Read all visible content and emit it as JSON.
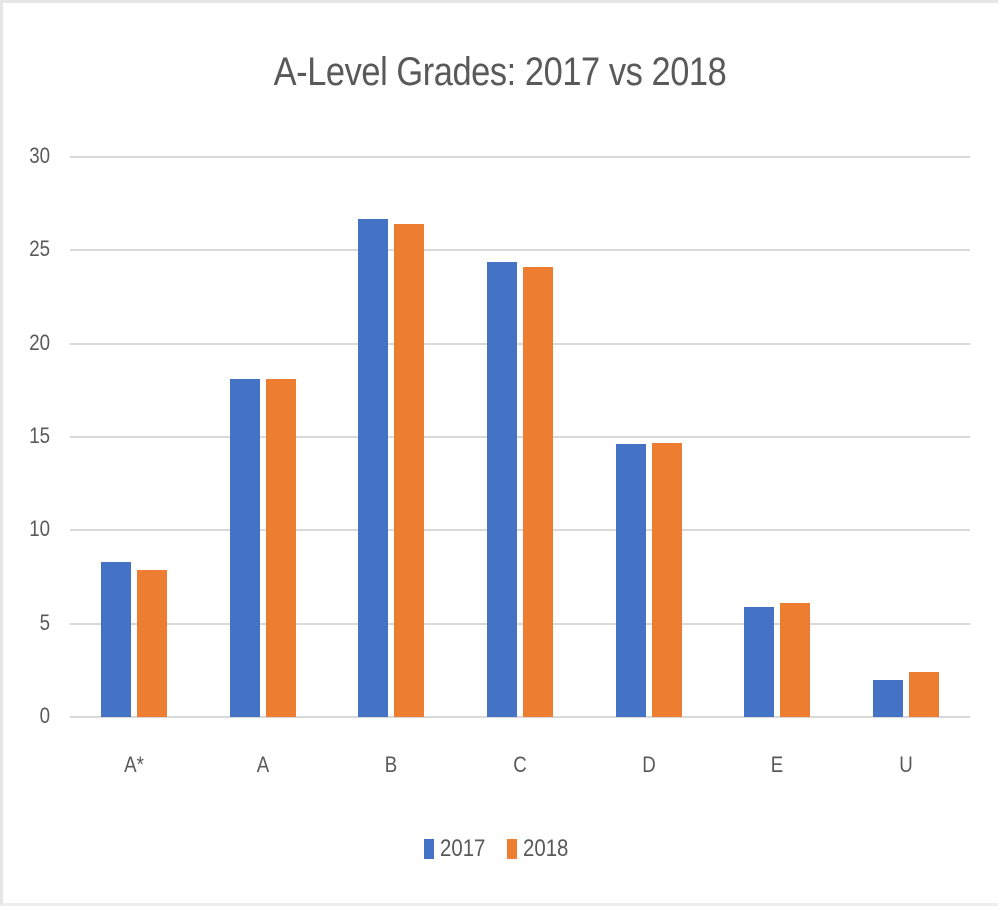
{
  "chart_data": {
    "type": "bar",
    "title": "A-Level Grades: 2017 vs 2018",
    "xlabel": "",
    "ylabel": "",
    "categories": [
      "A*",
      "A",
      "B",
      "C",
      "D",
      "E",
      "U"
    ],
    "series": [
      {
        "name": "2017",
        "color": "#4472c4",
        "values": [
          8.3,
          18.1,
          26.7,
          24.4,
          14.6,
          5.9,
          2.0
        ]
      },
      {
        "name": "2018",
        "color": "#ed7d31",
        "values": [
          7.9,
          18.1,
          26.4,
          24.1,
          14.7,
          6.1,
          2.4
        ]
      }
    ],
    "ylim": [
      0,
      30
    ],
    "yticks": [
      0,
      5,
      10,
      15,
      20,
      25,
      30
    ],
    "grid": true,
    "legend_position": "bottom"
  }
}
